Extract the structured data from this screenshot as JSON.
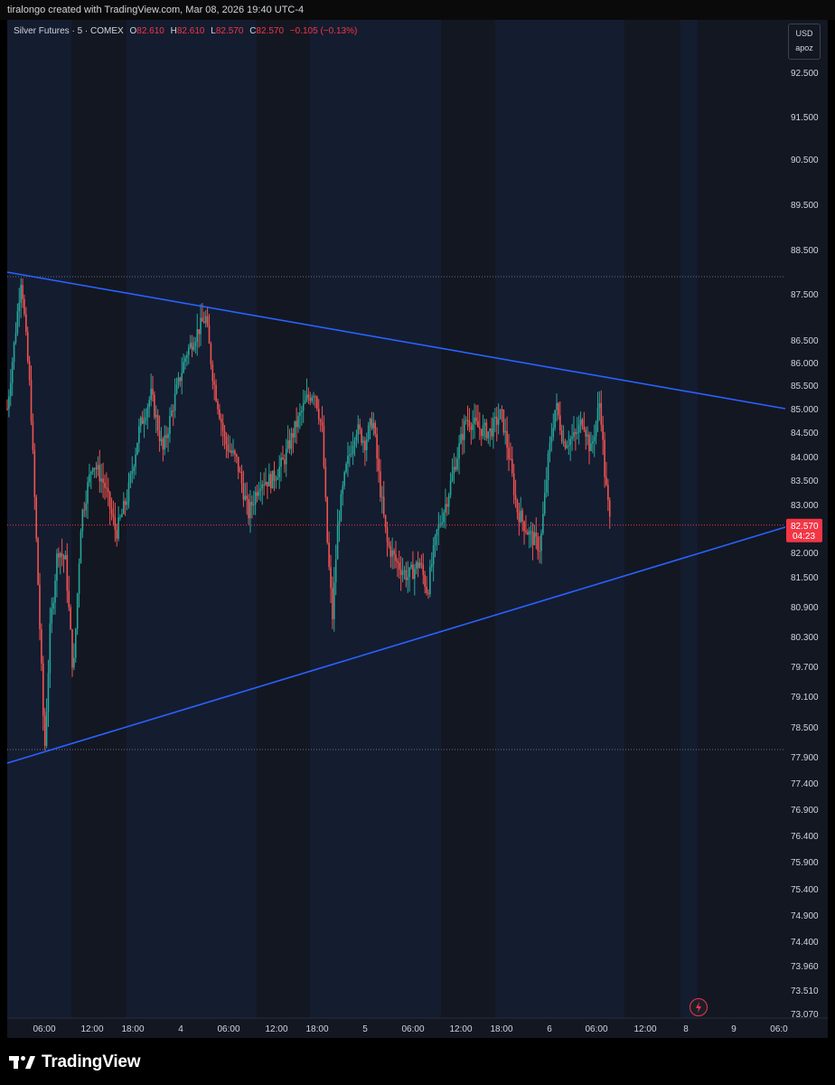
{
  "credit": "tiralongo created with TradingView.com, Mar 08, 2026 19:40 UTC-4",
  "legend": {
    "symbol": "Silver Futures · 5 · COMEX",
    "o_label": "O",
    "o_value": "82.610",
    "h_label": "H",
    "h_value": "82.610",
    "l_label": "L",
    "l_value": "82.570",
    "c_label": "C",
    "c_value": "82.570",
    "change": "−0.105 (−0.13%)"
  },
  "currency": "USD",
  "scale_mode": "apoz",
  "brand": "TradingView",
  "colors": {
    "background": "#131722",
    "session_band": "#141c30",
    "up": "#26a69a",
    "down": "#ef5350",
    "trendline": "#2962ff",
    "price_label": "#f23645"
  },
  "icons": [
    "tradingview-logo-icon",
    "lightning-icon"
  ],
  "chart_data": {
    "type": "candlestick",
    "interval": "5",
    "exchange": "COMEX",
    "current_price": "82.570",
    "countdown": "04:23",
    "y_ticks": [
      "92.500",
      "91.500",
      "90.500",
      "89.500",
      "88.500",
      "87.500",
      "86.500",
      "86.000",
      "85.500",
      "85.000",
      "84.500",
      "84.000",
      "83.500",
      "83.000",
      "82.000",
      "81.500",
      "80.900",
      "80.300",
      "79.700",
      "79.100",
      "78.500",
      "77.900",
      "77.400",
      "76.900",
      "76.400",
      "75.900",
      "75.400",
      "74.900",
      "74.400",
      "73.960",
      "73.510",
      "73.070"
    ],
    "x_ticks": [
      "06:00",
      "12:00",
      "18:00",
      "4",
      "06:00",
      "12:00",
      "18:00",
      "5",
      "06:00",
      "12:00",
      "18:00",
      "6",
      "06:00",
      "12:00",
      "8",
      "9",
      "06:0"
    ],
    "reference_levels": [
      87.8,
      77.95
    ],
    "trendlines": [
      {
        "name": "resistance",
        "start": [
          0.0,
          88.0
        ],
        "end": [
          1.0,
          85.0
        ]
      },
      {
        "name": "support",
        "start": [
          0.0,
          77.7
        ],
        "end": [
          1.0,
          82.5
        ]
      }
    ],
    "price_path": [
      [
        0.0,
        85.0
      ],
      [
        0.012,
        86.9
      ],
      [
        0.018,
        87.9
      ],
      [
        0.03,
        85.2
      ],
      [
        0.04,
        81.2
      ],
      [
        0.048,
        78.0
      ],
      [
        0.055,
        80.4
      ],
      [
        0.065,
        82.1
      ],
      [
        0.075,
        81.8
      ],
      [
        0.085,
        79.5
      ],
      [
        0.095,
        82.7
      ],
      [
        0.11,
        83.9
      ],
      [
        0.125,
        83.4
      ],
      [
        0.14,
        82.4
      ],
      [
        0.155,
        83.2
      ],
      [
        0.17,
        84.6
      ],
      [
        0.185,
        85.3
      ],
      [
        0.2,
        84.1
      ],
      [
        0.215,
        85.2
      ],
      [
        0.23,
        86.2
      ],
      [
        0.245,
        86.7
      ],
      [
        0.255,
        87.0
      ],
      [
        0.265,
        85.6
      ],
      [
        0.28,
        84.3
      ],
      [
        0.295,
        83.9
      ],
      [
        0.31,
        82.8
      ],
      [
        0.325,
        83.5
      ],
      [
        0.34,
        83.5
      ],
      [
        0.355,
        83.9
      ],
      [
        0.37,
        84.6
      ],
      [
        0.385,
        85.2
      ],
      [
        0.395,
        85.4
      ],
      [
        0.405,
        84.5
      ],
      [
        0.412,
        82.0
      ],
      [
        0.418,
        80.7
      ],
      [
        0.425,
        82.6
      ],
      [
        0.435,
        83.7
      ],
      [
        0.448,
        84.6
      ],
      [
        0.46,
        84.3
      ],
      [
        0.47,
        84.8
      ],
      [
        0.478,
        83.5
      ],
      [
        0.488,
        82.2
      ],
      [
        0.5,
        81.8
      ],
      [
        0.515,
        81.5
      ],
      [
        0.53,
        81.8
      ],
      [
        0.54,
        81.2
      ],
      [
        0.552,
        82.4
      ],
      [
        0.565,
        83.1
      ],
      [
        0.578,
        84.0
      ],
      [
        0.59,
        84.8
      ],
      [
        0.605,
        84.6
      ],
      [
        0.62,
        84.5
      ],
      [
        0.635,
        84.9
      ],
      [
        0.645,
        84.0
      ],
      [
        0.655,
        82.9
      ],
      [
        0.67,
        82.4
      ],
      [
        0.685,
        82.1
      ],
      [
        0.695,
        83.9
      ],
      [
        0.705,
        85.1
      ],
      [
        0.715,
        84.3
      ],
      [
        0.73,
        84.4
      ],
      [
        0.74,
        84.8
      ],
      [
        0.75,
        84.1
      ],
      [
        0.762,
        85.2
      ],
      [
        0.768,
        83.6
      ],
      [
        0.775,
        82.57
      ]
    ]
  }
}
